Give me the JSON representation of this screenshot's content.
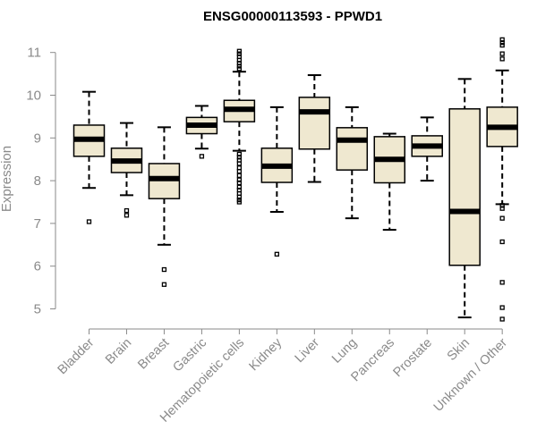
{
  "chart_data": {
    "type": "boxplot",
    "title": "ENSG00000113593 - PPWD1",
    "xlabel": "",
    "ylabel": "Expression",
    "ylim": [
      4.75,
      11.25
    ],
    "yticks": [
      "5",
      "6",
      "7",
      "8",
      "9",
      "10",
      "11"
    ],
    "box_fill": "#efe8d0",
    "categories": [
      "Bladder",
      "Brain",
      "Breast",
      "Gastric",
      "Hematopoietic cells",
      "Kidney",
      "Liver",
      "Lung",
      "Pancreas",
      "Prostate",
      "Skin",
      "Unknown / Other"
    ],
    "boxes": [
      {
        "name": "Bladder",
        "whisker_low": 7.83,
        "q1": 8.57,
        "median": 8.97,
        "q3": 9.3,
        "whisker_high": 10.08,
        "outliers": [
          7.04
        ]
      },
      {
        "name": "Brain",
        "whisker_low": 7.66,
        "q1": 8.19,
        "median": 8.46,
        "q3": 8.76,
        "whisker_high": 9.35,
        "outliers": [
          7.3,
          7.19
        ]
      },
      {
        "name": "Breast",
        "whisker_low": 6.5,
        "q1": 7.58,
        "median": 8.05,
        "q3": 8.4,
        "whisker_high": 9.25,
        "outliers": [
          5.92,
          5.57
        ]
      },
      {
        "name": "Gastric",
        "whisker_low": 8.75,
        "q1": 9.1,
        "median": 9.3,
        "q3": 9.48,
        "whisker_high": 9.75,
        "outliers": [
          8.57
        ]
      },
      {
        "name": "Hematopoietic cells",
        "whisker_low": 8.7,
        "q1": 9.38,
        "median": 9.67,
        "q3": 9.88,
        "whisker_high": 10.55,
        "outliers": [
          10.62,
          10.68,
          10.75,
          10.82,
          10.9,
          10.97,
          11.03,
          8.62,
          8.55,
          8.48,
          8.4,
          8.3,
          8.22,
          8.12,
          8.02,
          7.95,
          7.85,
          7.78,
          7.7,
          7.62,
          7.55,
          7.5
        ]
      },
      {
        "name": "Kidney",
        "whisker_low": 7.27,
        "q1": 7.96,
        "median": 8.34,
        "q3": 8.76,
        "whisker_high": 9.72,
        "outliers": [
          6.28
        ]
      },
      {
        "name": "Liver",
        "whisker_low": 7.97,
        "q1": 8.74,
        "median": 9.61,
        "q3": 9.95,
        "whisker_high": 10.47,
        "outliers": []
      },
      {
        "name": "Lung",
        "whisker_low": 7.12,
        "q1": 8.25,
        "median": 8.95,
        "q3": 9.24,
        "whisker_high": 9.72,
        "outliers": []
      },
      {
        "name": "Pancreas",
        "whisker_low": 6.85,
        "q1": 7.95,
        "median": 8.5,
        "q3": 9.03,
        "whisker_high": 9.1,
        "outliers": []
      },
      {
        "name": "Prostate",
        "whisker_low": 8.0,
        "q1": 8.57,
        "median": 8.81,
        "q3": 9.05,
        "whisker_high": 9.48,
        "outliers": []
      },
      {
        "name": "Skin",
        "whisker_low": 4.8,
        "q1": 6.02,
        "median": 7.28,
        "q3": 9.68,
        "whisker_high": 10.38,
        "outliers": []
      },
      {
        "name": "Unknown / Other",
        "whisker_low": 7.45,
        "q1": 8.8,
        "median": 9.25,
        "q3": 9.72,
        "whisker_high": 10.58,
        "outliers": [
          10.85,
          10.97,
          11.17,
          11.23,
          11.3,
          7.42,
          7.35,
          7.12,
          6.57,
          5.62,
          5.03,
          4.76
        ]
      }
    ]
  }
}
